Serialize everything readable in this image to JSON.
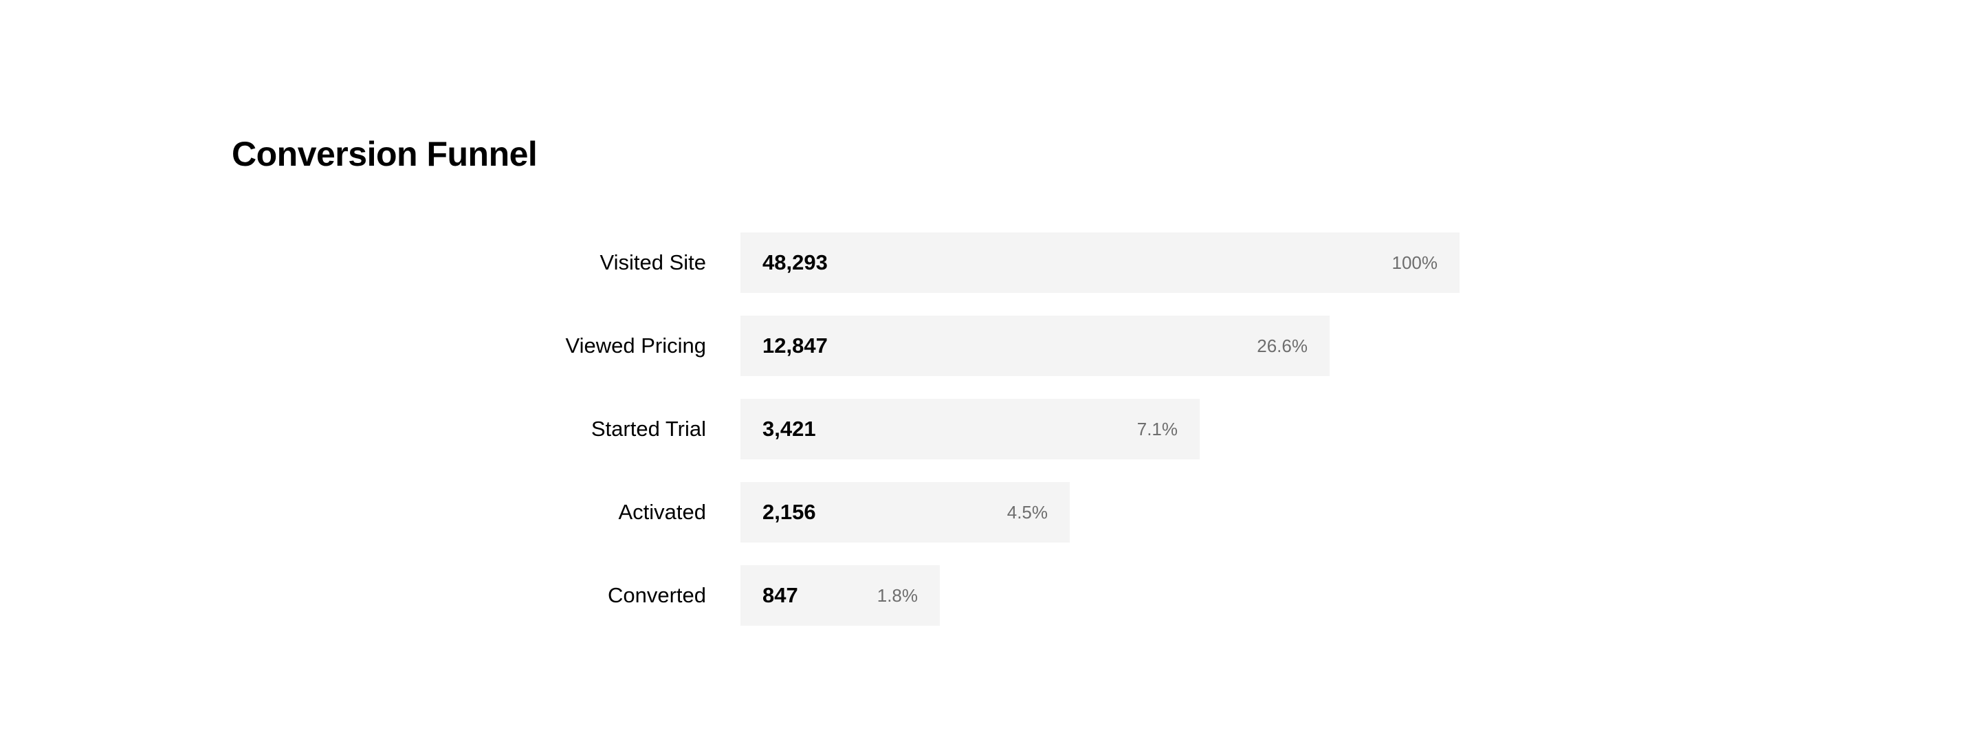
{
  "title": "Conversion Funnel",
  "chart_data": {
    "type": "bar",
    "title": "Conversion Funnel",
    "categories": [
      "Visited Site",
      "Viewed Pricing",
      "Started Trial",
      "Activated",
      "Converted"
    ],
    "values": [
      48293,
      12847,
      3421,
      2156,
      847
    ],
    "value_labels": [
      "48,293",
      "12,847",
      "3,421",
      "2,156",
      "847"
    ],
    "percent_labels": [
      "100%",
      "26.6%",
      "7.1%",
      "4.5%",
      "1.8%"
    ],
    "xlabel": "",
    "ylabel": "",
    "orientation": "horizontal",
    "grid": false,
    "colors": {
      "bar": "#f4f4f4",
      "text": "#000000",
      "percent_text": "#6e6e6e"
    }
  }
}
